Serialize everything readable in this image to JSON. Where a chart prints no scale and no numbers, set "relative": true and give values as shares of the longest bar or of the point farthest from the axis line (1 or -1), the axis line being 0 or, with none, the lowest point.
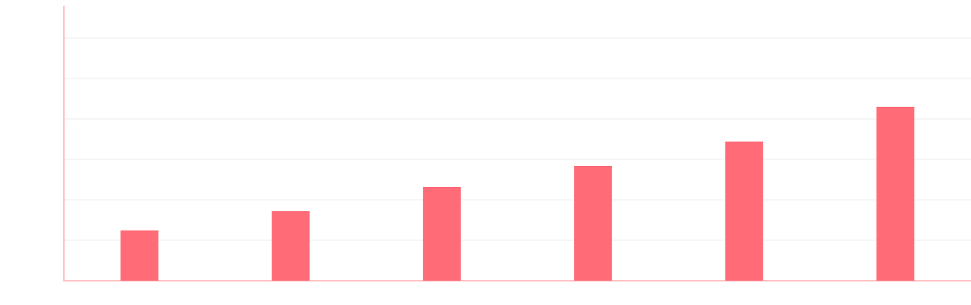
{
  "chart_data": {
    "type": "bar",
    "relative": true,
    "categories": [
      null,
      null,
      null,
      null,
      null,
      null
    ],
    "values": [
      0.29,
      0.4,
      0.54,
      0.66,
      0.8,
      1.0
    ],
    "color": "#ff6b76",
    "grid": "y"
  }
}
